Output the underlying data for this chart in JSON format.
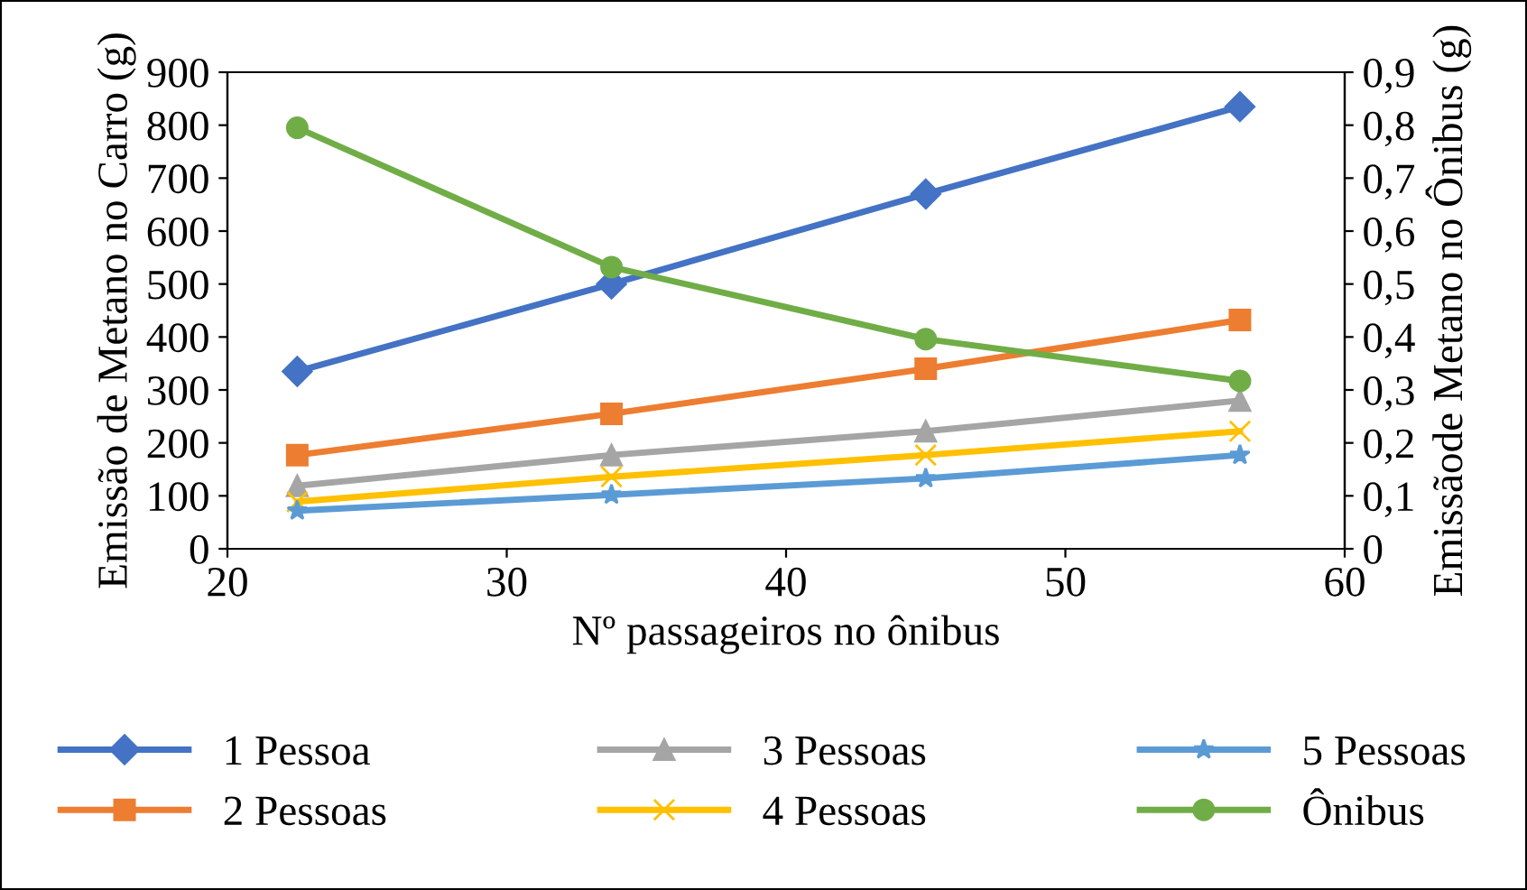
{
  "chart_data": {
    "type": "line",
    "xlabel": "Nº passageiros no ônibus",
    "ylabel": "Emissão de Metano no Carro (g)",
    "y2label": "Emissãode Metano no Ônibus (g)",
    "x": [
      22.5,
      33.75,
      45,
      56.25
    ],
    "series": [
      {
        "name": "1 Pessoa",
        "color": "#4472c4",
        "marker": "diamond",
        "values": [
          335,
          500,
          670,
          835
        ]
      },
      {
        "name": "2 Pessoas",
        "color": "#ed7d31",
        "marker": "square",
        "values": [
          177,
          255,
          340,
          432
        ]
      },
      {
        "name": "3 Pessoas",
        "color": "#a5a5a5",
        "marker": "triangle",
        "values": [
          119,
          177,
          222,
          280
        ]
      },
      {
        "name": "4 Pessoas",
        "color": "#ffc000",
        "marker": "cross",
        "values": [
          89,
          136,
          177,
          222
        ]
      },
      {
        "name": "5 Pessoas",
        "color": "#5b9bd5",
        "marker": "star",
        "values": [
          72,
          102,
          133,
          177
        ]
      },
      {
        "name": "Ônibus",
        "color": "#70ad47",
        "marker": "circle",
        "axis": "y2",
        "values": [
          0.795,
          0.532,
          0.396,
          0.317
        ]
      }
    ],
    "xlim": [
      20,
      60
    ],
    "xticks": [
      20,
      30,
      40,
      50,
      60
    ],
    "ylim": [
      0,
      900
    ],
    "yticks": [
      0,
      100,
      200,
      300,
      400,
      500,
      600,
      700,
      800,
      900
    ],
    "y2lim": [
      0,
      0.9
    ],
    "y2ticks": [
      0,
      {
        "value": 0.1,
        "label": "0,1"
      },
      {
        "value": 0.2,
        "label": "0,2"
      },
      {
        "value": 0.3,
        "label": "0,3"
      },
      {
        "value": 0.4,
        "label": "0,4"
      },
      {
        "value": 0.5,
        "label": "0,5"
      },
      {
        "value": 0.6,
        "label": "0,6"
      },
      {
        "value": 0.7,
        "label": "0,7"
      },
      {
        "value": 0.8,
        "label": "0,8"
      },
      {
        "value": 0.9,
        "label": "0,9"
      }
    ],
    "grid": false,
    "legend": "bottom",
    "line_style": "solid"
  }
}
